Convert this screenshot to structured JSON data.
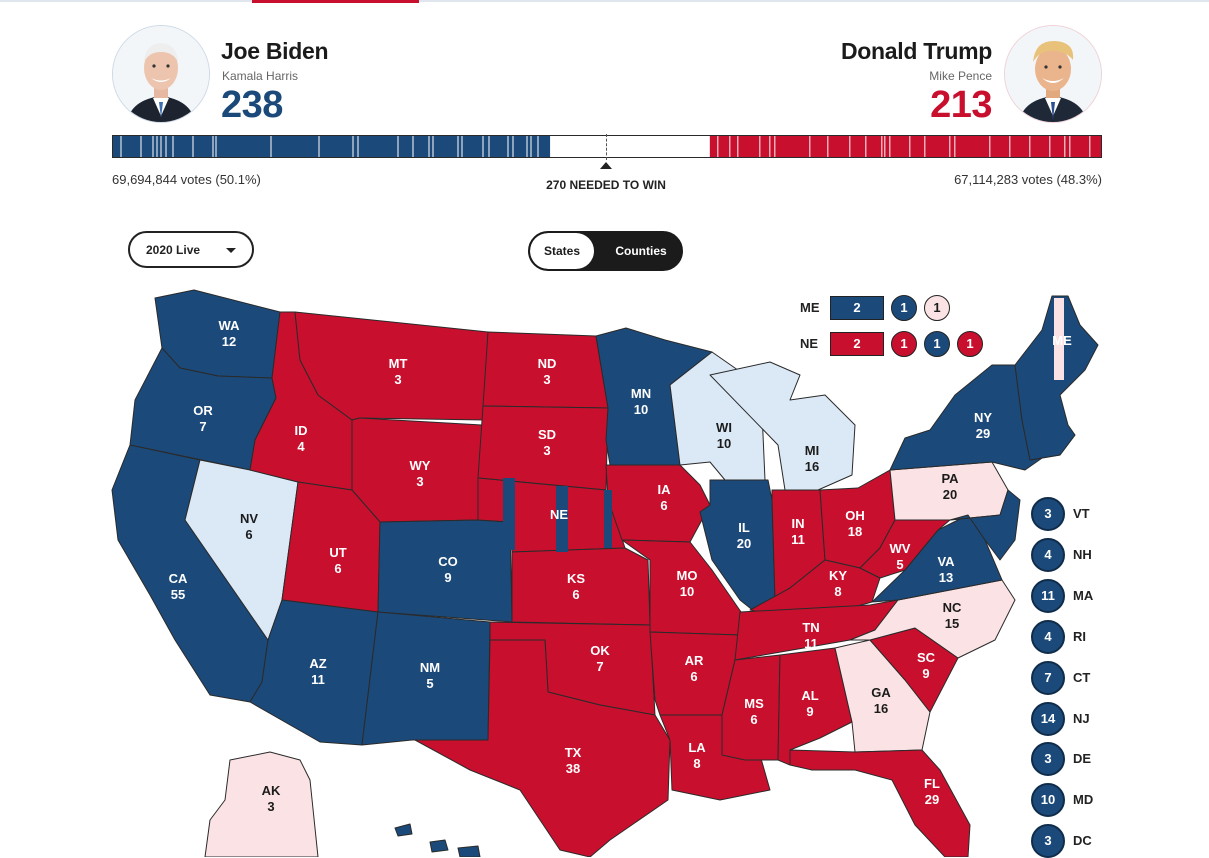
{
  "colors": {
    "dem": "#1b4a7a",
    "rep": "#c8102e",
    "dem_lean": "#dbe9f7",
    "rep_lean": "#fbe3e5"
  },
  "biden": {
    "name": "Joe Biden",
    "running_mate": "Kamala Harris",
    "electoral_votes": "238",
    "popular_votes": "69,694,844 votes (50.1%)"
  },
  "trump": {
    "name": "Donald Trump",
    "running_mate": "Mike Pence",
    "electoral_votes": "213",
    "popular_votes": "67,114,283 votes (48.3%)"
  },
  "needed_to_win": "270 NEEDED TO WIN",
  "bar": {
    "total_ev": 538,
    "dem_ev": 238,
    "rep_ev": 213
  },
  "controls": {
    "year_select": "2020 Live",
    "view_states": "States",
    "view_counties": "Counties"
  },
  "split_states": [
    {
      "code": "ME",
      "statewide": "2",
      "statewide_party": "dem",
      "districts": [
        {
          "value": "1",
          "party": "dem"
        },
        {
          "value": "1",
          "party": "rep_lean"
        }
      ]
    },
    {
      "code": "NE",
      "statewide": "2",
      "statewide_party": "rep",
      "districts": [
        {
          "value": "1",
          "party": "rep"
        },
        {
          "value": "1",
          "party": "dem"
        },
        {
          "value": "1",
          "party": "rep"
        }
      ]
    }
  ],
  "states": [
    {
      "code": "WA",
      "ev": "12",
      "party": "dem"
    },
    {
      "code": "OR",
      "ev": "7",
      "party": "dem"
    },
    {
      "code": "CA",
      "ev": "55",
      "party": "dem"
    },
    {
      "code": "NV",
      "ev": "6",
      "party": "dem_lean"
    },
    {
      "code": "ID",
      "ev": "4",
      "party": "rep"
    },
    {
      "code": "MT",
      "ev": "3",
      "party": "rep"
    },
    {
      "code": "WY",
      "ev": "3",
      "party": "rep"
    },
    {
      "code": "UT",
      "ev": "6",
      "party": "rep"
    },
    {
      "code": "AZ",
      "ev": "11",
      "party": "dem"
    },
    {
      "code": "CO",
      "ev": "9",
      "party": "dem"
    },
    {
      "code": "NM",
      "ev": "5",
      "party": "dem"
    },
    {
      "code": "ND",
      "ev": "3",
      "party": "rep"
    },
    {
      "code": "SD",
      "ev": "3",
      "party": "rep"
    },
    {
      "code": "NE",
      "ev": "",
      "party": "rep"
    },
    {
      "code": "KS",
      "ev": "6",
      "party": "rep"
    },
    {
      "code": "OK",
      "ev": "7",
      "party": "rep"
    },
    {
      "code": "TX",
      "ev": "38",
      "party": "rep"
    },
    {
      "code": "MN",
      "ev": "10",
      "party": "dem"
    },
    {
      "code": "IA",
      "ev": "6",
      "party": "rep"
    },
    {
      "code": "MO",
      "ev": "10",
      "party": "rep"
    },
    {
      "code": "AR",
      "ev": "6",
      "party": "rep"
    },
    {
      "code": "LA",
      "ev": "8",
      "party": "rep"
    },
    {
      "code": "WI",
      "ev": "10",
      "party": "dem_lean"
    },
    {
      "code": "IL",
      "ev": "20",
      "party": "dem"
    },
    {
      "code": "MI",
      "ev": "16",
      "party": "dem_lean"
    },
    {
      "code": "IN",
      "ev": "11",
      "party": "rep"
    },
    {
      "code": "OH",
      "ev": "18",
      "party": "rep"
    },
    {
      "code": "KY",
      "ev": "8",
      "party": "rep"
    },
    {
      "code": "TN",
      "ev": "11",
      "party": "rep"
    },
    {
      "code": "MS",
      "ev": "6",
      "party": "rep"
    },
    {
      "code": "AL",
      "ev": "9",
      "party": "rep"
    },
    {
      "code": "GA",
      "ev": "16",
      "party": "rep_lean"
    },
    {
      "code": "FL",
      "ev": "29",
      "party": "rep"
    },
    {
      "code": "SC",
      "ev": "9",
      "party": "rep"
    },
    {
      "code": "NC",
      "ev": "15",
      "party": "rep_lean"
    },
    {
      "code": "VA",
      "ev": "13",
      "party": "dem"
    },
    {
      "code": "WV",
      "ev": "5",
      "party": "rep"
    },
    {
      "code": "PA",
      "ev": "20",
      "party": "rep_lean"
    },
    {
      "code": "NY",
      "ev": "29",
      "party": "dem"
    },
    {
      "code": "ME",
      "ev": "",
      "party": "dem"
    },
    {
      "code": "AK",
      "ev": "3",
      "party": "rep_lean"
    },
    {
      "code": "HI",
      "ev": "",
      "party": "dem"
    }
  ],
  "small_states": [
    {
      "code": "VT",
      "ev": "3",
      "party": "dem"
    },
    {
      "code": "NH",
      "ev": "4",
      "party": "dem"
    },
    {
      "code": "MA",
      "ev": "11",
      "party": "dem"
    },
    {
      "code": "RI",
      "ev": "4",
      "party": "dem"
    },
    {
      "code": "CT",
      "ev": "7",
      "party": "dem"
    },
    {
      "code": "NJ",
      "ev": "14",
      "party": "dem"
    },
    {
      "code": "DE",
      "ev": "3",
      "party": "dem"
    },
    {
      "code": "MD",
      "ev": "10",
      "party": "dem"
    },
    {
      "code": "DC",
      "ev": "3",
      "party": "dem"
    }
  ]
}
